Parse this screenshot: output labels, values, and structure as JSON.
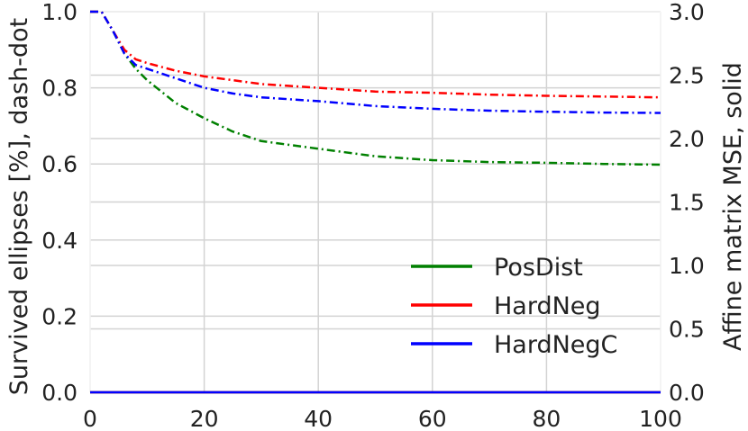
{
  "chart_data": {
    "type": "line",
    "title": "",
    "xlabel": "",
    "ylabel_left": "Survived ellipses [%], dash-dot",
    "ylabel_right": "Affine matrix MSE, solid",
    "xlim": [
      0,
      100
    ],
    "ylim_left": [
      0.0,
      1.0
    ],
    "ylim_right": [
      0.0,
      3.0
    ],
    "xticks": [
      "0",
      "20",
      "40",
      "60",
      "80",
      "100"
    ],
    "yticks_left": [
      "0.0",
      "0.2",
      "0.4",
      "0.6",
      "0.8",
      "1.0"
    ],
    "yticks_right": [
      "0.0",
      "0.5",
      "1.0",
      "1.5",
      "2.0",
      "2.5",
      "3.0"
    ],
    "grid": true,
    "legend_position": "bottom-right",
    "x": [
      0,
      2,
      4,
      6,
      8,
      10,
      15,
      20,
      25,
      30,
      40,
      50,
      60,
      70,
      80,
      90,
      100
    ],
    "series": [
      {
        "name": "PosDist",
        "color": "#008000",
        "axis": "left",
        "style": "dash-dot",
        "values": [
          1.0,
          1.0,
          0.95,
          0.89,
          0.85,
          0.82,
          0.76,
          0.72,
          0.685,
          0.66,
          0.64,
          0.62,
          0.61,
          0.605,
          0.603,
          0.6,
          0.598
        ]
      },
      {
        "name": "HardNeg",
        "color": "#ff0000",
        "axis": "left",
        "style": "dash-dot",
        "values": [
          1.0,
          1.0,
          0.95,
          0.9,
          0.875,
          0.865,
          0.845,
          0.83,
          0.82,
          0.81,
          0.8,
          0.79,
          0.787,
          0.782,
          0.779,
          0.777,
          0.775
        ]
      },
      {
        "name": "HardNegC",
        "color": "#0000ff",
        "axis": "left",
        "style": "dash-dot",
        "values": [
          1.0,
          1.0,
          0.95,
          0.89,
          0.86,
          0.85,
          0.825,
          0.8,
          0.785,
          0.775,
          0.765,
          0.752,
          0.745,
          0.74,
          0.737,
          0.735,
          0.734
        ]
      },
      {
        "name": "",
        "color": "#008000",
        "axis": "right",
        "style": "solid",
        "values": [
          0,
          0,
          0,
          0,
          0,
          0,
          0,
          0,
          0,
          0,
          0,
          0,
          0,
          0,
          0,
          0,
          0
        ]
      },
      {
        "name": "",
        "color": "#ff0000",
        "axis": "right",
        "style": "solid",
        "values": [
          0,
          0,
          0,
          0,
          0,
          0,
          0,
          0,
          0,
          0,
          0,
          0,
          0,
          0,
          0,
          0,
          0
        ]
      },
      {
        "name": "",
        "color": "#0000ff",
        "axis": "right",
        "style": "solid",
        "values": [
          0,
          0,
          0,
          0,
          0,
          0,
          0,
          0,
          0,
          0,
          0,
          0,
          0,
          0,
          0,
          0,
          0
        ]
      }
    ]
  }
}
